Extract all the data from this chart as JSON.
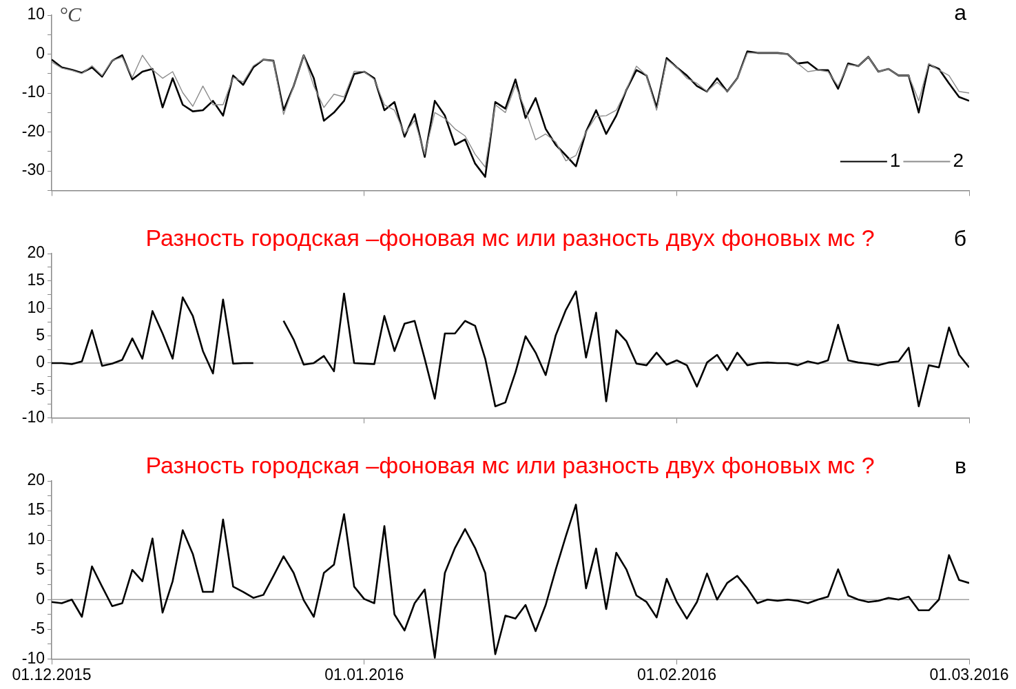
{
  "chart_data": [
    {
      "type": "line",
      "title": "а",
      "ylabel": "°C",
      "legend": "bottom right",
      "xlim": [
        "2015-12-01",
        "2016-03-01"
      ],
      "xticks": [
        {
          "value": "2015-12-01",
          "label": null
        },
        {
          "value": "2016-01-01",
          "label": null
        },
        {
          "value": "2016-02-01",
          "label": null
        },
        {
          "value": "2016-03-01",
          "label": null
        }
      ],
      "ylim": [
        -35,
        10
      ],
      "yticks": [
        {
          "value": -35,
          "label": null
        },
        -30,
        {
          "value": -25,
          "label": null
        },
        -20,
        {
          "value": -15,
          "label": null
        },
        -10,
        {
          "value": -5,
          "label": null
        },
        0,
        {
          "value": 5,
          "label": null
        },
        10
      ],
      "tick_labels": "y",
      "x": [
        "2015-12-01",
        "2015-12-02",
        "2015-12-03",
        "2015-12-04",
        "2015-12-05",
        "2015-12-06",
        "2015-12-07",
        "2015-12-08",
        "2015-12-09",
        "2015-12-10",
        "2015-12-11",
        "2015-12-12",
        "2015-12-13",
        "2015-12-14",
        "2015-12-15",
        "2015-12-16",
        "2015-12-17",
        "2015-12-18",
        "2015-12-19",
        "2015-12-20",
        "2015-12-21",
        "2015-12-22",
        "2015-12-23",
        "2015-12-24",
        "2015-12-25",
        "2015-12-26",
        "2015-12-27",
        "2015-12-28",
        "2015-12-29",
        "2015-12-30",
        "2015-12-31",
        "2016-01-01",
        "2016-01-02",
        "2016-01-03",
        "2016-01-04",
        "2016-01-05",
        "2016-01-06",
        "2016-01-07",
        "2016-01-08",
        "2016-01-09",
        "2016-01-10",
        "2016-01-11",
        "2016-01-12",
        "2016-01-13",
        "2016-01-14",
        "2016-01-15",
        "2016-01-16",
        "2016-01-17",
        "2016-01-18",
        "2016-01-19",
        "2016-01-20",
        "2016-01-21",
        "2016-01-22",
        "2016-01-23",
        "2016-01-24",
        "2016-01-25",
        "2016-01-26",
        "2016-01-27",
        "2016-01-28",
        "2016-01-29",
        "2016-01-30",
        "2016-01-31",
        "2016-02-01",
        "2016-02-02",
        "2016-02-03",
        "2016-02-04",
        "2016-02-05",
        "2016-02-06",
        "2016-02-07",
        "2016-02-08",
        "2016-02-09",
        "2016-02-10",
        "2016-02-11",
        "2016-02-12",
        "2016-02-13",
        "2016-02-14",
        "2016-02-15",
        "2016-02-16",
        "2016-02-17",
        "2016-02-18",
        "2016-02-19",
        "2016-02-20",
        "2016-02-21",
        "2016-02-22",
        "2016-02-23",
        "2016-02-24",
        "2016-02-25",
        "2016-02-26",
        "2016-02-27",
        "2016-02-28",
        "2016-02-29",
        "2016-03-01"
      ],
      "series": [
        {
          "name": "1",
          "color": "#000000",
          "values": [
            -1.4,
            -3.4,
            -4,
            -4.8,
            -3.4,
            -5.8,
            -1.7,
            -0.3,
            -6.5,
            -4.5,
            -3.8,
            -13.7,
            -6.2,
            -13,
            -14.7,
            -14.4,
            -12,
            -15.8,
            -5.5,
            -7.9,
            -3.4,
            -1.4,
            -1.7,
            -14.4,
            -8.2,
            -0.3,
            -6.2,
            -17.1,
            -15,
            -12,
            -5.1,
            -4.5,
            -6.2,
            -14.4,
            -12.3,
            -21.2,
            -15.4,
            -26.4,
            -12,
            -15.8,
            -23.3,
            -21.9,
            -28.1,
            -31.5,
            -12.3,
            -14,
            -6.5,
            -16.4,
            -11.3,
            -19.2,
            -23.3,
            -26,
            -28.8,
            -19.9,
            -14.4,
            -20.5,
            -15.8,
            -9.2,
            -4.1,
            -5.5,
            -13.7,
            -1,
            -3.4,
            -5.5,
            -8.2,
            -9.6,
            -6.2,
            -9.6,
            -6.2,
            0.7,
            0.3,
            0.3,
            0.3,
            0,
            -2.4,
            -2.1,
            -4.1,
            -4.1,
            -8.9,
            -2.4,
            -3.1,
            -0.7,
            -4.5,
            -3.8,
            -5.5,
            -5.5,
            -15,
            -2.7,
            -3.8,
            -7.5,
            -11,
            -12
          ]
        },
        {
          "name": "2",
          "color": "#8c8c8c",
          "values": [
            -2,
            -3.6,
            -4.2,
            -5,
            -3,
            -5.5,
            -1.6,
            -0.8,
            -6,
            -0.3,
            -4,
            -6.2,
            -4.5,
            -9.9,
            -13.4,
            -8.2,
            -13,
            -13,
            -6,
            -7.2,
            -3,
            -1.4,
            -1.7,
            -15.5,
            -8.2,
            -0.3,
            -8.2,
            -13.7,
            -10.3,
            -11,
            -4.4,
            -4.5,
            -6.5,
            -13,
            -14.4,
            -20.5,
            -17,
            -25.7,
            -15,
            -16.5,
            -19.2,
            -21,
            -25.7,
            -29,
            -13,
            -15,
            -8,
            -14.4,
            -22,
            -20.5,
            -22.6,
            -27.4,
            -26,
            -20,
            -16,
            -15.8,
            -14.4,
            -9.2,
            -3.1,
            -5.5,
            -14.4,
            -1.4,
            -3.4,
            -6.2,
            -7.5,
            -9.6,
            -7.2,
            -9.6,
            -6.2,
            0.3,
            0.3,
            0.3,
            0.3,
            0,
            -2.4,
            -4.5,
            -4.1,
            -4.5,
            -8.2,
            -2.7,
            -3.1,
            -0.7,
            -4.5,
            -3.8,
            -5.5,
            -5.5,
            -12,
            -2.4,
            -4.1,
            -5.5,
            -9.6,
            -10
          ]
        }
      ]
    },
    {
      "type": "line",
      "title": "б",
      "subtitle": "Разность городская –фоновая мс или разность двух фоновых мс ?",
      "xlim": [
        "2015-12-01",
        "2016-03-01"
      ],
      "xticks": [
        {
          "value": "2015-12-01",
          "label": null
        },
        {
          "value": "2016-01-01",
          "label": null
        },
        {
          "value": "2016-02-01",
          "label": null
        },
        {
          "value": "2016-03-01",
          "label": null
        }
      ],
      "ylim": [
        -10,
        20
      ],
      "yticks": [
        -10,
        {
          "value": -7.5,
          "label": null
        },
        -5,
        {
          "value": -2.5,
          "label": null
        },
        0,
        {
          "value": 2.5,
          "label": null
        },
        5,
        {
          "value": 7.5,
          "label": null
        },
        10,
        {
          "value": 12.5,
          "label": null
        },
        15,
        {
          "value": 17.5,
          "label": null
        },
        20
      ],
      "tick_labels": "y",
      "ref_lines": [
        {
          "axis": "y",
          "value": 0,
          "color": "#a0a0a0"
        }
      ],
      "x": [
        "2015-12-01",
        "2015-12-02",
        "2015-12-03",
        "2015-12-04",
        "2015-12-05",
        "2015-12-06",
        "2015-12-07",
        "2015-12-08",
        "2015-12-09",
        "2015-12-10",
        "2015-12-11",
        "2015-12-12",
        "2015-12-13",
        "2015-12-14",
        "2015-12-15",
        "2015-12-16",
        "2015-12-17",
        "2015-12-18",
        "2015-12-19",
        "2015-12-20",
        "2015-12-21",
        "2015-12-22",
        "2015-12-23",
        "2015-12-24",
        "2015-12-25",
        "2015-12-26",
        "2015-12-27",
        "2015-12-28",
        "2015-12-29",
        "2015-12-30",
        "2015-12-31",
        "2016-01-01",
        "2016-01-02",
        "2016-01-03",
        "2016-01-04",
        "2016-01-05",
        "2016-01-06",
        "2016-01-07",
        "2016-01-08",
        "2016-01-09",
        "2016-01-10",
        "2016-01-11",
        "2016-01-12",
        "2016-01-13",
        "2016-01-14",
        "2016-01-15",
        "2016-01-16",
        "2016-01-17",
        "2016-01-18",
        "2016-01-19",
        "2016-01-20",
        "2016-01-21",
        "2016-01-22",
        "2016-01-23",
        "2016-01-24",
        "2016-01-25",
        "2016-01-26",
        "2016-01-27",
        "2016-01-28",
        "2016-01-29",
        "2016-01-30",
        "2016-01-31",
        "2016-02-01",
        "2016-02-02",
        "2016-02-03",
        "2016-02-04",
        "2016-02-05",
        "2016-02-06",
        "2016-02-07",
        "2016-02-08",
        "2016-02-09",
        "2016-02-10",
        "2016-02-11",
        "2016-02-12",
        "2016-02-13",
        "2016-02-14",
        "2016-02-15",
        "2016-02-16",
        "2016-02-17",
        "2016-02-18",
        "2016-02-19",
        "2016-02-20",
        "2016-02-21",
        "2016-02-22",
        "2016-02-23",
        "2016-02-24",
        "2016-02-25",
        "2016-02-26",
        "2016-02-27",
        "2016-02-28",
        "2016-02-29",
        "2016-03-01"
      ],
      "series": [
        {
          "color": "#000000",
          "values": [
            0,
            0,
            -0.2,
            0.3,
            6,
            -0.5,
            -0.1,
            0.6,
            4.5,
            0.8,
            9.5,
            5.4,
            0.8,
            12,
            8.6,
            2.2,
            -1.9,
            11.6,
            -0.1,
            0,
            0,
            null,
            null,
            7.7,
            4.3,
            -0.3,
            0,
            1.3,
            -1.5,
            12.7,
            0,
            -0.1,
            -0.2,
            8.6,
            2.2,
            7.2,
            7.7,
            0.8,
            -6.5,
            5.4,
            5.4,
            7.7,
            6.8,
            0.8,
            -7.9,
            -7.2,
            -1.7,
            4.9,
            1.9,
            -2.2,
            5.1,
            9.7,
            13.1,
            1,
            9.2,
            -7,
            6,
            4,
            -0.1,
            -0.4,
            1.9,
            -0.3,
            0.5,
            -0.4,
            -4.3,
            0.1,
            1.5,
            -1.3,
            1.9,
            -0.4,
            0,
            0.1,
            0,
            0,
            -0.4,
            0.3,
            -0.1,
            0.5,
            7,
            0.5,
            0.1,
            -0.1,
            -0.4,
            0.1,
            0.3,
            2.8,
            -7.9,
            -0.4,
            -0.8,
            6.5,
            1.5,
            -0.8
          ]
        }
      ]
    },
    {
      "type": "line",
      "title": "в",
      "subtitle": "Разность городская –фоновая мс или разность двух фоновых мс ?",
      "xlim": [
        "2015-12-01",
        "2016-03-01"
      ],
      "xticks": [
        {
          "value": "2015-12-01",
          "label": "01.12.2015"
        },
        {
          "value": "2016-01-01",
          "label": "01.01.2016"
        },
        {
          "value": "2016-02-01",
          "label": "01.02.2016"
        },
        {
          "value": "2016-03-01",
          "label": "01.03.2016"
        }
      ],
      "ylim": [
        -10,
        20
      ],
      "yticks": [
        -10,
        {
          "value": -7.5,
          "label": null
        },
        -5,
        {
          "value": -2.5,
          "label": null
        },
        0,
        {
          "value": 2.5,
          "label": null
        },
        5,
        {
          "value": 7.5,
          "label": null
        },
        10,
        {
          "value": 12.5,
          "label": null
        },
        15,
        {
          "value": 17.5,
          "label": null
        },
        20
      ],
      "ref_lines": [
        {
          "axis": "y",
          "value": 0,
          "color": "#a0a0a0"
        }
      ],
      "x": [
        "2015-12-01",
        "2015-12-02",
        "2015-12-03",
        "2015-12-04",
        "2015-12-05",
        "2015-12-06",
        "2015-12-07",
        "2015-12-08",
        "2015-12-09",
        "2015-12-10",
        "2015-12-11",
        "2015-12-12",
        "2015-12-13",
        "2015-12-14",
        "2015-12-15",
        "2015-12-16",
        "2015-12-17",
        "2015-12-18",
        "2015-12-19",
        "2015-12-20",
        "2015-12-21",
        "2015-12-22",
        "2015-12-23",
        "2015-12-24",
        "2015-12-25",
        "2015-12-26",
        "2015-12-27",
        "2015-12-28",
        "2015-12-29",
        "2015-12-30",
        "2015-12-31",
        "2016-01-01",
        "2016-01-02",
        "2016-01-03",
        "2016-01-04",
        "2016-01-05",
        "2016-01-06",
        "2016-01-07",
        "2016-01-08",
        "2016-01-09",
        "2016-01-10",
        "2016-01-11",
        "2016-01-12",
        "2016-01-13",
        "2016-01-14",
        "2016-01-15",
        "2016-01-16",
        "2016-01-17",
        "2016-01-18",
        "2016-01-19",
        "2016-01-20",
        "2016-01-21",
        "2016-01-22",
        "2016-01-23",
        "2016-01-24",
        "2016-01-25",
        "2016-01-26",
        "2016-01-27",
        "2016-01-28",
        "2016-01-29",
        "2016-01-30",
        "2016-01-31",
        "2016-02-01",
        "2016-02-02",
        "2016-02-03",
        "2016-02-04",
        "2016-02-05",
        "2016-02-06",
        "2016-02-07",
        "2016-02-08",
        "2016-02-09",
        "2016-02-10",
        "2016-02-11",
        "2016-02-12",
        "2016-02-13",
        "2016-02-14",
        "2016-02-15",
        "2016-02-16",
        "2016-02-17",
        "2016-02-18",
        "2016-02-19",
        "2016-02-20",
        "2016-02-21",
        "2016-02-22",
        "2016-02-23",
        "2016-02-24",
        "2016-02-25",
        "2016-02-26",
        "2016-02-27",
        "2016-02-28",
        "2016-02-29",
        "2016-03-01"
      ],
      "series": [
        {
          "color": "#000000",
          "values": [
            -0.4,
            -0.6,
            0,
            -2.9,
            5.6,
            2.2,
            -1.1,
            -0.6,
            5,
            3.1,
            10.3,
            -2.2,
            3.1,
            11.7,
            7.7,
            1.3,
            1.3,
            13.5,
            2.2,
            1.3,
            0.3,
            0.8,
            4,
            7.3,
            4.5,
            -0.1,
            -2.9,
            4.5,
            5.9,
            14.4,
            2.2,
            0.1,
            -0.6,
            12.4,
            -2.5,
            -5.2,
            -0.6,
            1.7,
            -9.8,
            4.5,
            8.7,
            11.9,
            8.7,
            4.5,
            -9.2,
            -2.7,
            -3.2,
            -0.9,
            -5.3,
            -0.9,
            5.1,
            10.7,
            16,
            1.9,
            8.6,
            -1.6,
            7.9,
            5.1,
            0.7,
            -0.4,
            -3,
            3.5,
            -0.4,
            -3.2,
            -0.4,
            4.4,
            0,
            2.8,
            4,
            1.9,
            -0.6,
            0,
            -0.2,
            0,
            -0.2,
            -0.6,
            0,
            0.5,
            5.1,
            0.7,
            0,
            -0.4,
            -0.2,
            0.3,
            0,
            0.5,
            -1.8,
            -1.8,
            0,
            7.5,
            3.3,
            2.8
          ]
        }
      ]
    }
  ]
}
